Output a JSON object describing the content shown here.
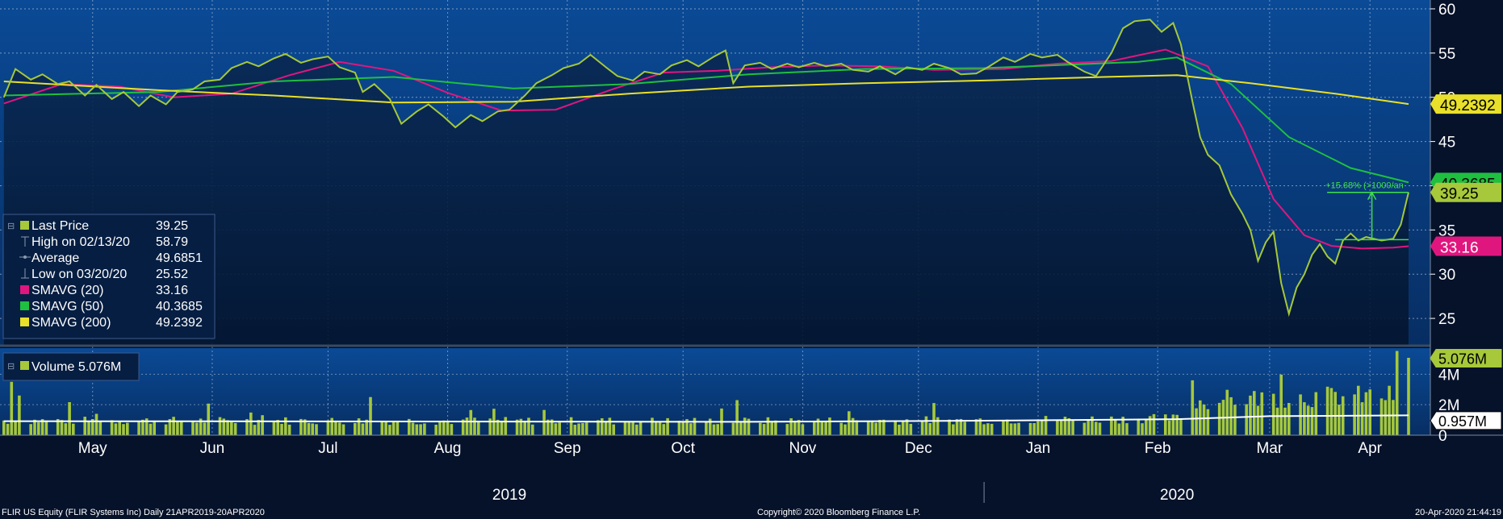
{
  "chart_data": {
    "type": "line",
    "x_range": [
      "2019-04-21",
      "2020-04-20"
    ],
    "price_axis": {
      "min": 22,
      "max": 61,
      "ticks": [
        25,
        30,
        35,
        40,
        45,
        50,
        55,
        60
      ]
    },
    "volume_axis": {
      "min": 0,
      "max": 5.5,
      "ticks": [
        {
          "v": 0,
          "label": "0"
        },
        {
          "v": 2,
          "label": "2M"
        },
        {
          "v": 4,
          "label": "4M"
        }
      ]
    },
    "months": [
      {
        "label": "May",
        "date": "2019-05-15"
      },
      {
        "label": "Jun",
        "date": "2019-06-15"
      },
      {
        "label": "Jul",
        "date": "2019-07-15"
      },
      {
        "label": "Aug",
        "date": "2019-08-15"
      },
      {
        "label": "Sep",
        "date": "2019-09-15"
      },
      {
        "label": "Oct",
        "date": "2019-10-15"
      },
      {
        "label": "Nov",
        "date": "2019-11-15"
      },
      {
        "label": "Dec",
        "date": "2019-12-15"
      },
      {
        "label": "Jan",
        "date": "2020-01-15"
      },
      {
        "label": "Feb",
        "date": "2020-02-15"
      },
      {
        "label": "Mar",
        "date": "2020-03-15"
      },
      {
        "label": "Apr",
        "date": "2020-04-10"
      }
    ],
    "years": [
      {
        "label": "2019",
        "date": "2019-08-31"
      },
      {
        "label": "2020",
        "date": "2020-02-20"
      }
    ],
    "year_divider": "2020-01-01",
    "series": [
      {
        "name": "Last Price",
        "color": "#a6c83a",
        "points": [
          [
            "2019-04-22",
            50.0
          ],
          [
            "2019-04-25",
            53.2
          ],
          [
            "2019-04-29",
            52.0
          ],
          [
            "2019-05-02",
            52.6
          ],
          [
            "2019-05-06",
            51.5
          ],
          [
            "2019-05-09",
            51.8
          ],
          [
            "2019-05-13",
            50.2
          ],
          [
            "2019-05-16",
            51.4
          ],
          [
            "2019-05-20",
            49.8
          ],
          [
            "2019-05-23",
            50.6
          ],
          [
            "2019-05-27",
            49.0
          ],
          [
            "2019-05-30",
            50.2
          ],
          [
            "2019-06-03",
            49.2
          ],
          [
            "2019-06-06",
            50.6
          ],
          [
            "2019-06-10",
            50.9
          ],
          [
            "2019-06-13",
            51.8
          ],
          [
            "2019-06-17",
            52.0
          ],
          [
            "2019-06-20",
            53.3
          ],
          [
            "2019-06-24",
            54.0
          ],
          [
            "2019-06-27",
            53.5
          ],
          [
            "2019-07-01",
            54.4
          ],
          [
            "2019-07-04",
            54.9
          ],
          [
            "2019-07-08",
            53.9
          ],
          [
            "2019-07-11",
            54.3
          ],
          [
            "2019-07-15",
            54.6
          ],
          [
            "2019-07-18",
            53.4
          ],
          [
            "2019-07-22",
            52.8
          ],
          [
            "2019-07-24",
            50.6
          ],
          [
            "2019-07-27",
            51.5
          ],
          [
            "2019-07-31",
            49.8
          ],
          [
            "2019-08-03",
            47.0
          ],
          [
            "2019-08-07",
            48.4
          ],
          [
            "2019-08-10",
            49.2
          ],
          [
            "2019-08-14",
            47.8
          ],
          [
            "2019-08-17",
            46.6
          ],
          [
            "2019-08-21",
            48.0
          ],
          [
            "2019-08-24",
            47.3
          ],
          [
            "2019-08-28",
            48.4
          ],
          [
            "2019-08-31",
            48.6
          ],
          [
            "2019-09-04",
            50.2
          ],
          [
            "2019-09-07",
            51.6
          ],
          [
            "2019-09-11",
            52.5
          ],
          [
            "2019-09-14",
            53.3
          ],
          [
            "2019-09-18",
            53.8
          ],
          [
            "2019-09-21",
            54.8
          ],
          [
            "2019-09-25",
            53.4
          ],
          [
            "2019-09-28",
            52.4
          ],
          [
            "2019-10-02",
            51.9
          ],
          [
            "2019-10-05",
            52.9
          ],
          [
            "2019-10-09",
            52.6
          ],
          [
            "2019-10-12",
            53.6
          ],
          [
            "2019-10-16",
            54.2
          ],
          [
            "2019-10-19",
            53.5
          ],
          [
            "2019-10-23",
            54.6
          ],
          [
            "2019-10-26",
            55.3
          ],
          [
            "2019-10-28",
            51.6
          ],
          [
            "2019-10-31",
            53.6
          ],
          [
            "2019-11-04",
            53.9
          ],
          [
            "2019-11-07",
            53.2
          ],
          [
            "2019-11-11",
            53.8
          ],
          [
            "2019-11-14",
            53.4
          ],
          [
            "2019-11-18",
            53.9
          ],
          [
            "2019-11-21",
            53.5
          ],
          [
            "2019-11-25",
            53.8
          ],
          [
            "2019-11-28",
            53.1
          ],
          [
            "2019-12-02",
            52.9
          ],
          [
            "2019-12-05",
            53.5
          ],
          [
            "2019-12-09",
            52.6
          ],
          [
            "2019-12-12",
            53.4
          ],
          [
            "2019-12-16",
            53.1
          ],
          [
            "2019-12-19",
            53.8
          ],
          [
            "2019-12-23",
            53.3
          ],
          [
            "2019-12-26",
            52.6
          ],
          [
            "2019-12-30",
            52.7
          ],
          [
            "2020-01-02",
            53.4
          ],
          [
            "2020-01-06",
            54.5
          ],
          [
            "2020-01-09",
            54.0
          ],
          [
            "2020-01-13",
            54.9
          ],
          [
            "2020-01-16",
            54.5
          ],
          [
            "2020-01-20",
            54.8
          ],
          [
            "2020-01-23",
            53.9
          ],
          [
            "2020-01-27",
            52.9
          ],
          [
            "2020-01-30",
            52.4
          ],
          [
            "2020-02-03",
            55.0
          ],
          [
            "2020-02-06",
            57.8
          ],
          [
            "2020-02-09",
            58.6
          ],
          [
            "2020-02-13",
            58.79
          ],
          [
            "2020-02-16",
            57.4
          ],
          [
            "2020-02-19",
            58.4
          ],
          [
            "2020-02-21",
            56.0
          ],
          [
            "2020-02-24",
            49.5
          ],
          [
            "2020-02-26",
            45.5
          ],
          [
            "2020-02-28",
            43.5
          ],
          [
            "2020-03-02",
            42.3
          ],
          [
            "2020-03-05",
            39.0
          ],
          [
            "2020-03-08",
            36.8
          ],
          [
            "2020-03-10",
            35.0
          ],
          [
            "2020-03-12",
            31.5
          ],
          [
            "2020-03-14",
            33.6
          ],
          [
            "2020-03-16",
            34.8
          ],
          [
            "2020-03-18",
            29.0
          ],
          [
            "2020-03-20",
            25.52
          ],
          [
            "2020-03-22",
            28.5
          ],
          [
            "2020-03-24",
            30.0
          ],
          [
            "2020-03-26",
            32.2
          ],
          [
            "2020-03-28",
            33.4
          ],
          [
            "2020-03-30",
            32.0
          ],
          [
            "2020-04-01",
            31.2
          ],
          [
            "2020-04-03",
            33.8
          ],
          [
            "2020-04-05",
            34.6
          ],
          [
            "2020-04-07",
            33.8
          ],
          [
            "2020-04-09",
            34.2
          ],
          [
            "2020-04-13",
            33.8
          ],
          [
            "2020-04-16",
            34.0
          ],
          [
            "2020-04-18",
            35.6
          ],
          [
            "2020-04-20",
            39.25
          ]
        ]
      },
      {
        "name": "SMAVG (20)",
        "color": "#e0167f",
        "points": [
          [
            "2019-04-22",
            49.3
          ],
          [
            "2019-05-07",
            51.5
          ],
          [
            "2019-05-22",
            51.2
          ],
          [
            "2019-06-05",
            50.0
          ],
          [
            "2019-06-20",
            50.4
          ],
          [
            "2019-07-05",
            52.5
          ],
          [
            "2019-07-18",
            54.0
          ],
          [
            "2019-08-01",
            53.0
          ],
          [
            "2019-08-15",
            50.5
          ],
          [
            "2019-08-29",
            48.5
          ],
          [
            "2019-09-12",
            48.6
          ],
          [
            "2019-09-26",
            50.8
          ],
          [
            "2019-10-10",
            52.8
          ],
          [
            "2019-10-24",
            53.0
          ],
          [
            "2019-11-07",
            53.4
          ],
          [
            "2019-11-21",
            53.6
          ],
          [
            "2019-12-05",
            53.5
          ],
          [
            "2019-12-19",
            53.1
          ],
          [
            "2020-01-06",
            53.2
          ],
          [
            "2020-01-20",
            53.8
          ],
          [
            "2020-02-03",
            54.1
          ],
          [
            "2020-02-17",
            55.4
          ],
          [
            "2020-02-28",
            53.5
          ],
          [
            "2020-03-08",
            46.5
          ],
          [
            "2020-03-16",
            38.5
          ],
          [
            "2020-03-24",
            34.4
          ],
          [
            "2020-03-31",
            33.2
          ],
          [
            "2020-04-08",
            32.9
          ],
          [
            "2020-04-16",
            33.0
          ],
          [
            "2020-04-20",
            33.16
          ]
        ]
      },
      {
        "name": "SMAVG (50)",
        "color": "#1fbf40",
        "points": [
          [
            "2019-04-22",
            50.2
          ],
          [
            "2019-06-01",
            50.6
          ],
          [
            "2019-07-01",
            51.8
          ],
          [
            "2019-08-01",
            52.3
          ],
          [
            "2019-09-01",
            51.0
          ],
          [
            "2019-10-01",
            51.5
          ],
          [
            "2019-11-01",
            52.6
          ],
          [
            "2019-12-01",
            53.2
          ],
          [
            "2020-01-01",
            53.3
          ],
          [
            "2020-02-10",
            54.0
          ],
          [
            "2020-02-20",
            54.5
          ],
          [
            "2020-03-05",
            51.5
          ],
          [
            "2020-03-20",
            45.5
          ],
          [
            "2020-04-05",
            42.0
          ],
          [
            "2020-04-20",
            40.3685
          ]
        ]
      },
      {
        "name": "SMAVG (200)",
        "color": "#e8e02a",
        "points": [
          [
            "2019-04-22",
            51.8
          ],
          [
            "2019-06-01",
            50.8
          ],
          [
            "2019-07-01",
            50.2
          ],
          [
            "2019-08-01",
            49.4
          ],
          [
            "2019-09-01",
            49.5
          ],
          [
            "2019-10-01",
            50.4
          ],
          [
            "2019-11-01",
            51.2
          ],
          [
            "2019-12-01",
            51.6
          ],
          [
            "2020-01-01",
            51.9
          ],
          [
            "2020-02-01",
            52.3
          ],
          [
            "2020-02-20",
            52.5
          ],
          [
            "2020-03-10",
            51.6
          ],
          [
            "2020-04-01",
            50.4
          ],
          [
            "2020-04-20",
            49.2392
          ]
        ]
      }
    ],
    "volume": {
      "name": "Volume",
      "last_label": "5.076M",
      "avg_label": "0.957M",
      "avg": 0.957,
      "color": "#a6c83a",
      "avg_line": [
        [
          "2019-04-22",
          0.92
        ],
        [
          "2019-08-01",
          0.9
        ],
        [
          "2019-11-01",
          0.88
        ],
        [
          "2020-01-01",
          0.95
        ],
        [
          "2020-02-20",
          1.05
        ],
        [
          "2020-03-15",
          1.25
        ],
        [
          "2020-04-20",
          1.3
        ]
      ],
      "spikes": [
        [
          "2019-04-24",
          3.5
        ],
        [
          "2019-04-26",
          2.6
        ],
        [
          "2019-07-26",
          2.5
        ],
        [
          "2019-10-29",
          2.3
        ],
        [
          "2020-02-22",
          4.0
        ],
        [
          "2020-02-24",
          3.6
        ],
        [
          "2020-04-20",
          5.076
        ]
      ]
    },
    "annotation": {
      "label": "+15.68% (>1000/an",
      "from": [
        "2020-04-01",
        33.9
      ],
      "to": [
        "2020-04-20",
        39.25
      ]
    }
  },
  "legend": {
    "items": [
      {
        "label": "Last Price",
        "value": "39.25",
        "color": "#a6c83a",
        "marker": "square"
      },
      {
        "label": "High on 02/13/20",
        "value": "58.79",
        "color": "#8a9ab0",
        "marker": "high"
      },
      {
        "label": "Average",
        "value": "49.6851",
        "color": "#8a9ab0",
        "marker": "dash"
      },
      {
        "label": "Low on 03/20/20",
        "value": "25.52",
        "color": "#8a9ab0",
        "marker": "low"
      },
      {
        "label": "SMAVG (20)",
        "value": "33.16",
        "color": "#e0167f",
        "marker": "square"
      },
      {
        "label": "SMAVG (50)",
        "value": "40.3685",
        "color": "#1fbf40",
        "marker": "square"
      },
      {
        "label": "SMAVG (200)",
        "value": "49.2392",
        "color": "#e8e02a",
        "marker": "square"
      }
    ],
    "volume_label": "Volume 5.076M"
  },
  "tags": [
    {
      "value": "49.2392",
      "price": 49.2392,
      "bg": "#e8e02a",
      "fg": "#000000"
    },
    {
      "value": "40.3685",
      "price": 40.3685,
      "bg": "#1fbf40",
      "fg": "#000000"
    },
    {
      "value": "39.25",
      "price": 39.25,
      "bg": "#a6c83a",
      "fg": "#000000"
    },
    {
      "value": "33.16",
      "price": 33.16,
      "bg": "#e0167f",
      "fg": "#ffffff"
    }
  ],
  "footer": {
    "left": "FLIR US Equity (FLIR Systems Inc)  Daily 21APR2019-20APR2020",
    "center": "Copyright© 2020 Bloomberg Finance L.P.",
    "right": "20-Apr-2020 21:44:19"
  }
}
